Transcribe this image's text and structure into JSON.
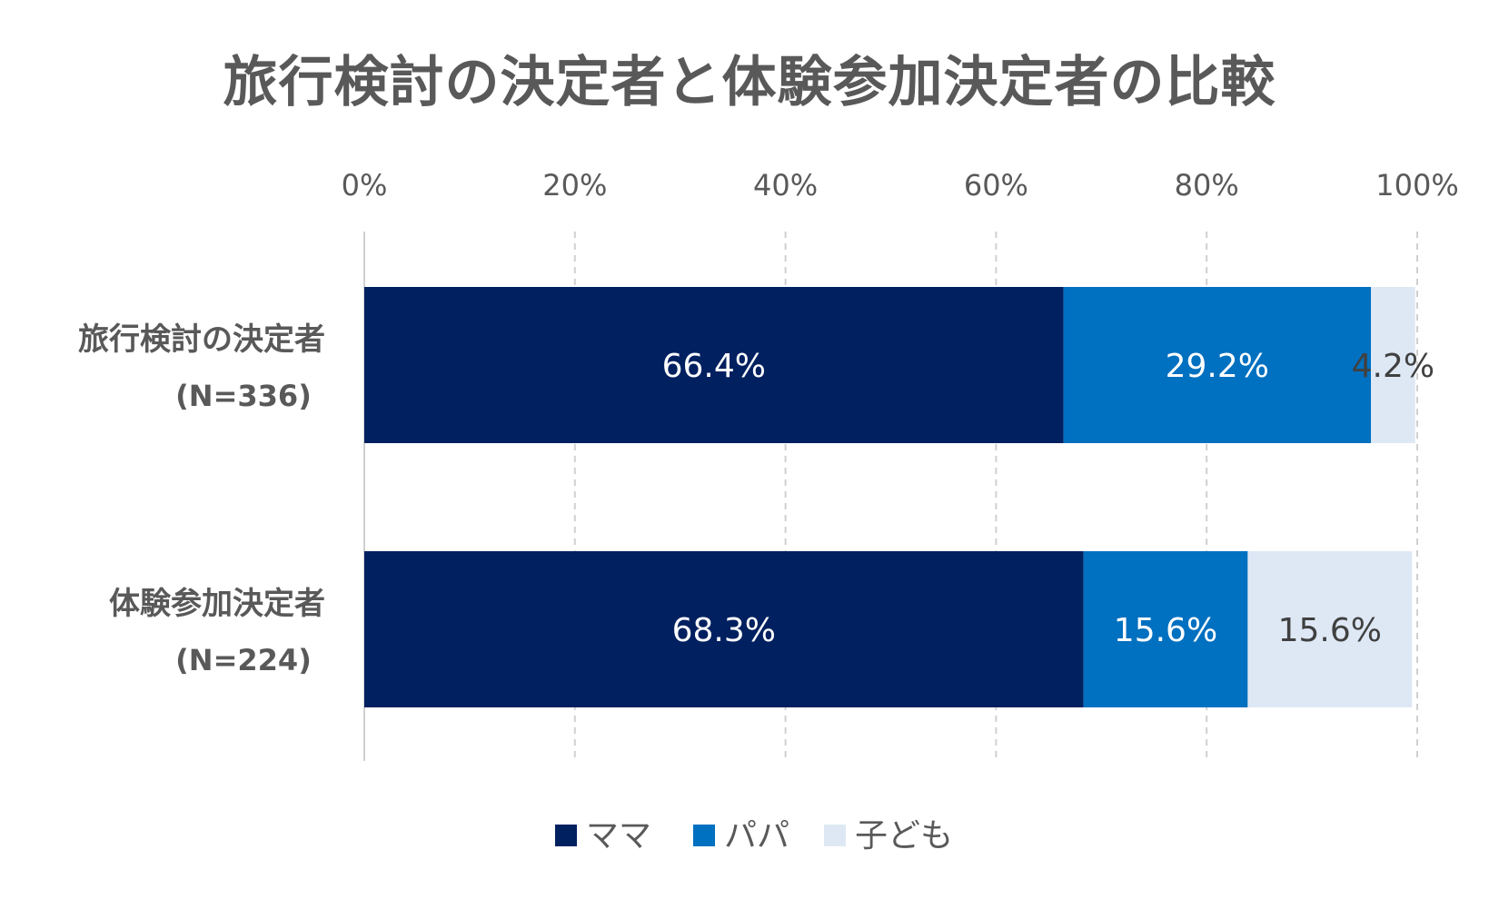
{
  "chart_data": {
    "type": "bar",
    "orientation": "horizontal",
    "stacked": "percent",
    "title": "旅行検討の決定者と体験参加決定者の比較",
    "categories": [
      {
        "label": "旅行検討の決定者",
        "n": "(N=336)"
      },
      {
        "label": "体験参加決定者",
        "n": "(N=224)"
      }
    ],
    "series": [
      {
        "name": "ママ",
        "color": "#002060",
        "label_color": "#ffffff",
        "values": [
          66.4,
          68.3
        ],
        "labels": [
          "66.4%",
          "68.3%"
        ]
      },
      {
        "name": "パパ",
        "color": "#0070c0",
        "label_color": "#ffffff",
        "values": [
          29.2,
          15.6
        ],
        "labels": [
          "29.2%",
          "15.6%"
        ]
      },
      {
        "name": "子ども",
        "color": "#dee8f5",
        "label_color": "#404040",
        "values": [
          4.2,
          15.6
        ],
        "labels": [
          "4.2%",
          "15.6%"
        ]
      }
    ],
    "xlim": [
      0,
      100
    ],
    "xticks": [
      0,
      20,
      40,
      60,
      80,
      100
    ],
    "xtick_labels": [
      "0%",
      "20%",
      "40%",
      "60%",
      "80%",
      "100%"
    ],
    "x_axis_position": "top",
    "grid": true,
    "grid_style": "dashed",
    "legend_position": "bottom"
  }
}
